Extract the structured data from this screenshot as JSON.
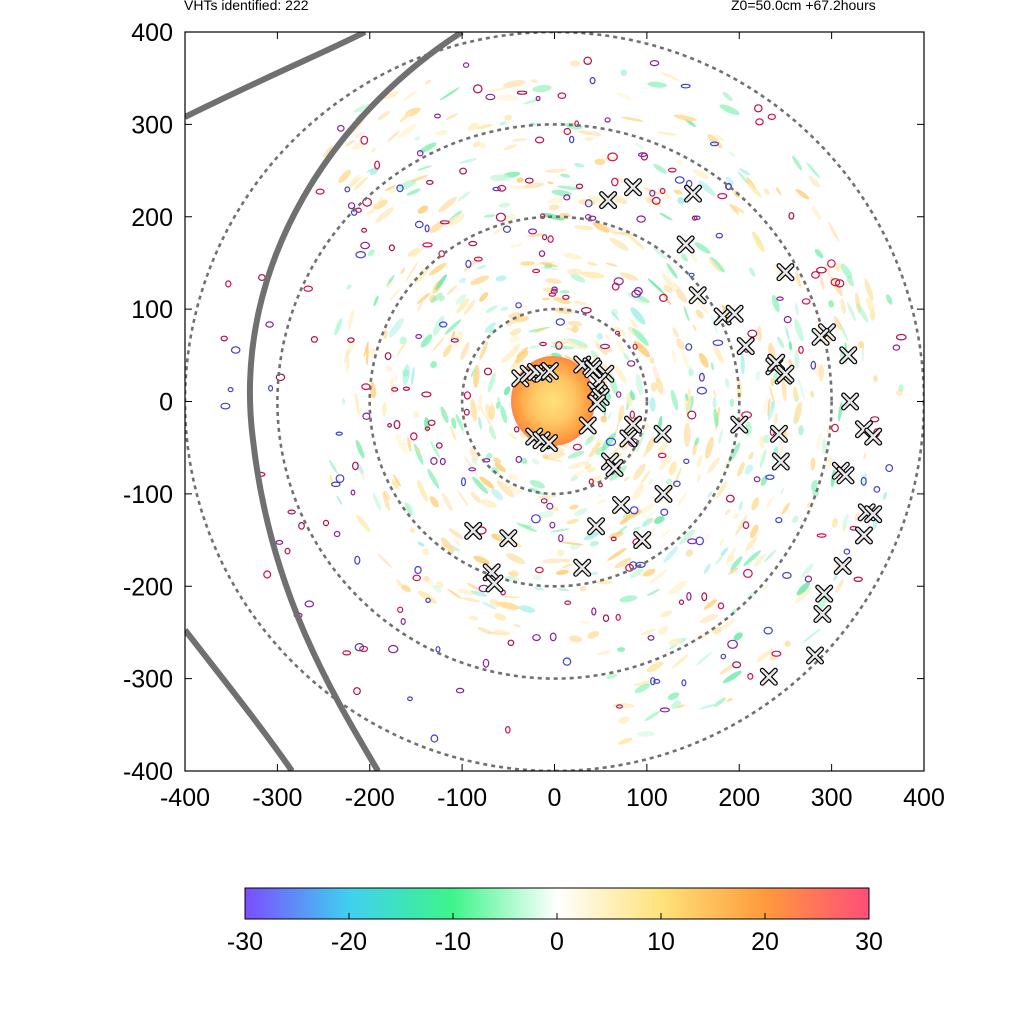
{
  "header": {
    "left_text": "VHTs identified: 222",
    "right_text": "Z0=50.0cm  +67.2hours"
  },
  "chart_data": {
    "type": "heatmap",
    "title": "",
    "xlabel": "",
    "ylabel": "",
    "xlim": [
      -400,
      400
    ],
    "ylim": [
      -400,
      400
    ],
    "x_ticks": [
      -400,
      -300,
      -200,
      -100,
      0,
      100,
      200,
      300,
      400
    ],
    "y_ticks": [
      -400,
      -300,
      -200,
      -100,
      0,
      100,
      200,
      300,
      400
    ],
    "range_rings_radius": [
      100,
      200,
      300,
      400
    ],
    "colorbar": {
      "min": -30,
      "max": 30,
      "ticks": [
        -30,
        -20,
        -10,
        0,
        10,
        20,
        30
      ],
      "colors": [
        "#7b4dff",
        "#3fd0f0",
        "#3ef58a",
        "#ffffff",
        "#ffe27a",
        "#ff9a3c",
        "#ff4d78"
      ]
    },
    "markers_count": 222,
    "vht_markers": [
      [
        -37,
        25
      ],
      [
        -28,
        30
      ],
      [
        -20,
        32
      ],
      [
        -12,
        30
      ],
      [
        -5,
        33
      ],
      [
        30,
        40
      ],
      [
        40,
        38
      ],
      [
        55,
        30
      ],
      [
        48,
        22
      ],
      [
        45,
        12
      ],
      [
        50,
        5
      ],
      [
        46,
        -2
      ],
      [
        42,
        35
      ],
      [
        -22,
        -38
      ],
      [
        -14,
        -42
      ],
      [
        -6,
        -45
      ],
      [
        36,
        -26
      ],
      [
        60,
        -65
      ],
      [
        65,
        -72
      ],
      [
        72,
        -112
      ],
      [
        45,
        -135
      ],
      [
        30,
        -180
      ],
      [
        95,
        -150
      ],
      [
        118,
        -100
      ],
      [
        117,
        -35
      ],
      [
        85,
        -25
      ],
      [
        80,
        -40
      ],
      [
        -88,
        -140
      ],
      [
        -50,
        -148
      ],
      [
        -68,
        -185
      ],
      [
        -65,
        -197
      ],
      [
        58,
        218
      ],
      [
        85,
        232
      ],
      [
        150,
        225
      ],
      [
        142,
        170
      ],
      [
        155,
        115
      ],
      [
        182,
        92
      ],
      [
        195,
        95
      ],
      [
        207,
        60
      ],
      [
        250,
        140
      ],
      [
        295,
        75
      ],
      [
        288,
        70
      ],
      [
        318,
        50
      ],
      [
        320,
        0
      ],
      [
        248,
        28
      ],
      [
        238,
        38
      ],
      [
        240,
        42
      ],
      [
        250,
        30
      ],
      [
        200,
        -25
      ],
      [
        243,
        -35
      ],
      [
        245,
        -65
      ],
      [
        310,
        -75
      ],
      [
        315,
        -80
      ],
      [
        335,
        -30
      ],
      [
        345,
        -38
      ],
      [
        338,
        -120
      ],
      [
        345,
        -122
      ],
      [
        335,
        -145
      ],
      [
        312,
        -178
      ],
      [
        292,
        -208
      ],
      [
        290,
        -230
      ],
      [
        282,
        -275
      ],
      [
        232,
        -298
      ]
    ],
    "track_lines": 3
  }
}
